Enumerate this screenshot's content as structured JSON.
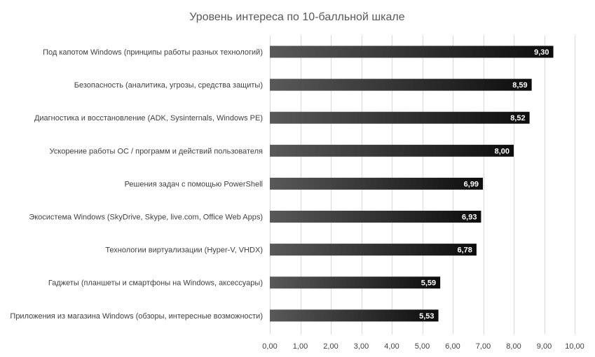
{
  "chart_data": {
    "type": "bar",
    "orientation": "horizontal",
    "title": "Уровень интереса по 10-балльной шкале",
    "categories": [
      "Под капотом Windows (принципы работы разных технологий)",
      "Безопасность (аналитика, угрозы, средства защиты)",
      "Диагностика и восстановление (ADK, Sysinternals, Windows PE)",
      "Ускорение работы ОС / программ и действий пользователя",
      "Решения задач с помощью PowerShell",
      "Экосистема Windows (SkyDrive, Skype, live.com, Office Web Apps)",
      "Технологии виртуализации (Hyper-V, VHDX)",
      "Гаджеты (планшеты и смартфоны на Windows, аксессуары)",
      "Приложения из  магазина Windows (обзоры, интересные возможности)"
    ],
    "values": [
      9.3,
      8.59,
      8.52,
      8.0,
      6.99,
      6.93,
      6.78,
      5.59,
      5.53
    ],
    "data_labels": [
      "9,30",
      "8,59",
      "8,52",
      "8,00",
      "6,99",
      "6,93",
      "6,78",
      "5,59",
      "5,53"
    ],
    "xlim": [
      0,
      10
    ],
    "x_ticks": [
      0,
      1,
      2,
      3,
      4,
      5,
      6,
      7,
      8,
      9,
      10
    ],
    "x_tick_labels": [
      "0,00",
      "1,00",
      "2,00",
      "3,00",
      "4,00",
      "5,00",
      "6,00",
      "7,00",
      "8,00",
      "9,00",
      "10,00"
    ],
    "xlabel": "",
    "ylabel": "",
    "grid": "vertical",
    "legend": "none",
    "colors": {
      "bar_start": "#595959",
      "bar_end": "#0d0d0d",
      "grid": "#d9d9d9",
      "text": "#404040",
      "title": "#595959",
      "data_label": "#ffffff"
    }
  }
}
